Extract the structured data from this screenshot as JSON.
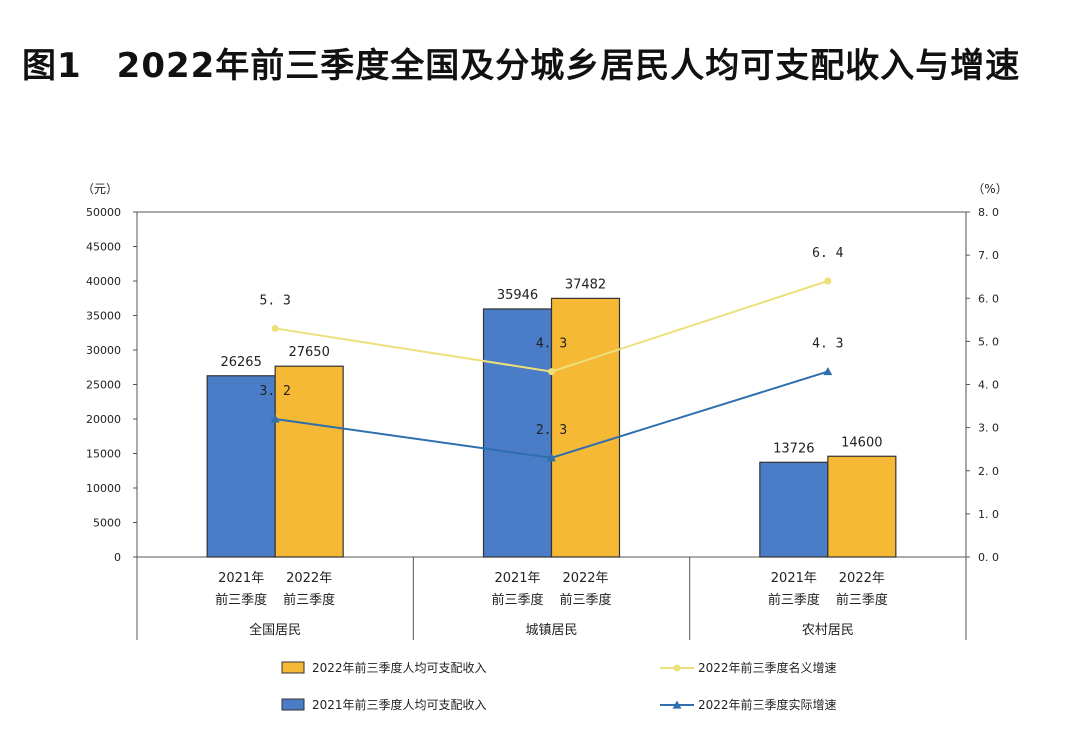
{
  "title": "图1　2022年前三季度全国及分城乡居民人均可支配收入与增速",
  "chart_data": {
    "type": "bar",
    "left_axis": {
      "unit": "（元）",
      "range": [
        0,
        50000
      ],
      "ticks": [
        "0",
        "5000",
        "10000",
        "15000",
        "20000",
        "25000",
        "30000",
        "35000",
        "40000",
        "45000",
        "50000"
      ]
    },
    "right_axis": {
      "unit": "（%）",
      "range": [
        0,
        8
      ],
      "ticks": [
        "0.0",
        "1.0",
        "2.0",
        "3.0",
        "4.0",
        "5.0",
        "6.0",
        "7.0",
        "8.0"
      ]
    },
    "groups": [
      {
        "name": "全国居民",
        "bar_labels": [
          [
            "2021年",
            "前三季度"
          ],
          [
            "2022年",
            "前三季度"
          ]
        ]
      },
      {
        "name": "城镇居民",
        "bar_labels": [
          [
            "2021年",
            "前三季度"
          ],
          [
            "2022年",
            "前三季度"
          ]
        ]
      },
      {
        "name": "农村居民",
        "bar_labels": [
          [
            "2021年",
            "前三季度"
          ],
          [
            "2022年",
            "前三季度"
          ]
        ]
      }
    ],
    "bar_series": [
      {
        "name": "2021年前三季度人均可支配收入",
        "color": "#4a7cc7",
        "values": [
          26265,
          35946,
          13726
        ],
        "labels": [
          "26265",
          "35946",
          "13726"
        ]
      },
      {
        "name": "2022年前三季度人均可支配收入",
        "color": "#f5b935",
        "values": [
          27650,
          37482,
          14600
        ],
        "labels": [
          "27650",
          "37482",
          "14600"
        ]
      }
    ],
    "line_series": [
      {
        "name": "2022年前三季度名义增速",
        "color": "#ece07a",
        "marker": "circle",
        "values": [
          5.3,
          4.3,
          6.4
        ],
        "labels": [
          "5. 3",
          "4. 3",
          "6. 4"
        ]
      },
      {
        "name": "2022年前三季度实际增速",
        "color": "#2f6fad",
        "marker": "triangle",
        "values": [
          3.2,
          2.3,
          4.3
        ],
        "labels": [
          "3. 2",
          "2. 3",
          "4. 3"
        ]
      }
    ],
    "legend": {
      "placement": "bottom",
      "order": [
        1,
        0
      ],
      "line_order": [
        0,
        1
      ]
    }
  }
}
